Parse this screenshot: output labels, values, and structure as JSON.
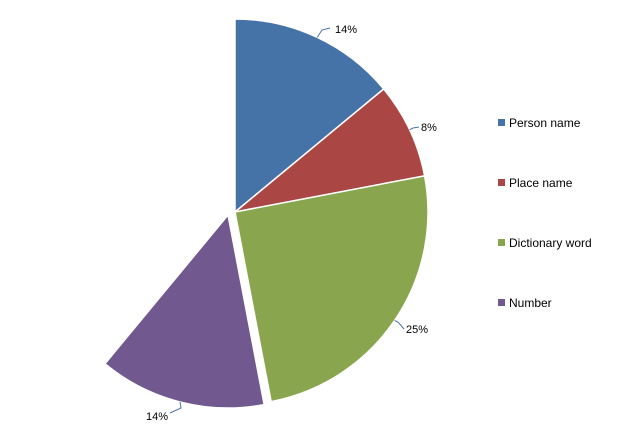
{
  "chart_data": {
    "type": "pie",
    "subtype": "exploded-partial",
    "categories": [
      "Person name",
      "Place name",
      "Dictionary word",
      "Number"
    ],
    "values": [
      14,
      8,
      25,
      14
    ],
    "labels": [
      "14%",
      "8%",
      "25%",
      "14%"
    ],
    "colors": [
      "#4572a7",
      "#aa4643",
      "#89a54e",
      "#71588f"
    ],
    "exploded_category": "Number",
    "legend_position": "right"
  }
}
